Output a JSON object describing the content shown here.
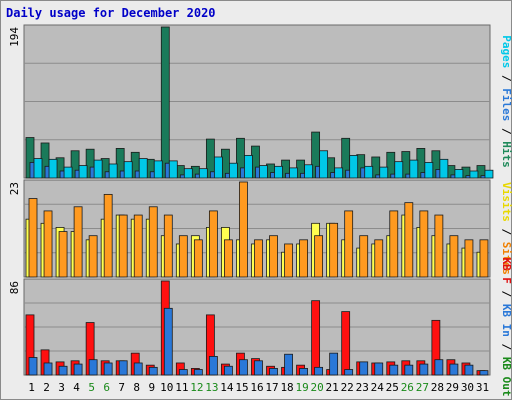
{
  "chart_data": {
    "type": "bar",
    "title": "Daily usage for December 2020",
    "categories": [
      "1",
      "2",
      "3",
      "4",
      "5",
      "6",
      "7",
      "8",
      "9",
      "10",
      "11",
      "12",
      "13",
      "14",
      "15",
      "16",
      "17",
      "18",
      "19",
      "20",
      "21",
      "22",
      "23",
      "24",
      "25",
      "26",
      "27",
      "28",
      "29",
      "30",
      "31"
    ],
    "weekend_day_color": "#1a8a1a",
    "weekday_day_color": "#000000",
    "weekend_days": [
      "5",
      "6",
      "12",
      "13",
      "19",
      "20",
      "26",
      "27"
    ],
    "panels": [
      {
        "name": "top",
        "ymax": 194,
        "ymax_label": "194",
        "legend": [
          {
            "text": "Pages",
            "color": "#00c8e8"
          },
          {
            "text": " / ",
            "color": "#000000"
          },
          {
            "text": "Files",
            "color": "#2a78d8"
          },
          {
            "text": " / ",
            "color": "#000000"
          },
          {
            "text": "Hits",
            "color": "#1f8a5a"
          }
        ],
        "series": [
          {
            "name": "Hits",
            "color": "#1a7a5a",
            "values": [
              52,
              45,
              26,
              35,
              37,
              25,
              38,
              33,
              24,
              194,
              16,
              15,
              50,
              37,
              51,
              41,
              18,
              23,
              23,
              59,
              26,
              51,
              30,
              27,
              33,
              34,
              38,
              35,
              16,
              14,
              16
            ]
          },
          {
            "name": "Files",
            "color": "#2a78d8",
            "values": [
              20,
              15,
              9,
              10,
              14,
              8,
              9,
              9,
              8,
              19,
              4,
              5,
              8,
              6,
              13,
              14,
              7,
              6,
              6,
              15,
              7,
              10,
              13,
              4,
              5,
              5,
              7,
              11,
              4,
              3,
              3
            ]
          },
          {
            "name": "Pages",
            "color": "#00c8e8",
            "values": [
              25,
              24,
              14,
              16,
              23,
              18,
              21,
              25,
              22,
              22,
              12,
              12,
              27,
              19,
              29,
              16,
              15,
              13,
              17,
              35,
              13,
              29,
              15,
              14,
              21,
              23,
              20,
              24,
              11,
              9,
              10
            ]
          }
        ]
      },
      {
        "name": "middle",
        "ymax": 23,
        "ymax_label": "23",
        "legend": [
          {
            "text": "Visits",
            "color": "#e8d800"
          },
          {
            "text": " / ",
            "color": "#000000"
          },
          {
            "text": "Sites",
            "color": "#f08000"
          }
        ],
        "series": [
          {
            "name": "Visits",
            "color": "#ffff50",
            "values": [
              14,
              13,
              12,
              11,
              9,
              14,
              15,
              14,
              14,
              10,
              8,
              10,
              12,
              12,
              9,
              8,
              9,
              6,
              8,
              13,
              13,
              9,
              7,
              8,
              10,
              15,
              12,
              10,
              8,
              7,
              6
            ]
          },
          {
            "name": "Sites",
            "color": "#ff9a20",
            "values": [
              19,
              16,
              11,
              17,
              10,
              20,
              15,
              15,
              17,
              15,
              10,
              9,
              16,
              9,
              23,
              9,
              10,
              8,
              9,
              10,
              13,
              16,
              10,
              9,
              16,
              18,
              16,
              15,
              10,
              9,
              9
            ]
          }
        ]
      },
      {
        "name": "bottom",
        "ymax": 86,
        "ymax_label": "86",
        "legend": [
          {
            "text": "KB F",
            "color": "#e01010"
          },
          {
            "text": " / ",
            "color": "#000000"
          },
          {
            "text": "KB In",
            "color": "#2a78d8"
          },
          {
            "text": " / ",
            "color": "#000000"
          },
          {
            "text": "KB Out",
            "color": "#1a8a1a"
          }
        ],
        "series": [
          {
            "name": "KB F",
            "color": "#ff1010",
            "values": [
              55,
              23,
              12,
              13,
              48,
              13,
              13,
              20,
              9,
              86,
              11,
              6,
              55,
              10,
              20,
              15,
              8,
              7,
              9,
              68,
              5,
              58,
              12,
              11,
              12,
              13,
              13,
              50,
              14,
              11,
              4
            ]
          },
          {
            "name": "KB In",
            "color": "#2a78d8",
            "values": [
              16,
              11,
              8,
              10,
              14,
              11,
              13,
              11,
              7,
              61,
              5,
              5,
              17,
              8,
              14,
              13,
              6,
              19,
              6,
              7,
              20,
              5,
              12,
              11,
              9,
              9,
              10,
              14,
              10,
              9,
              4
            ]
          }
        ]
      }
    ]
  }
}
